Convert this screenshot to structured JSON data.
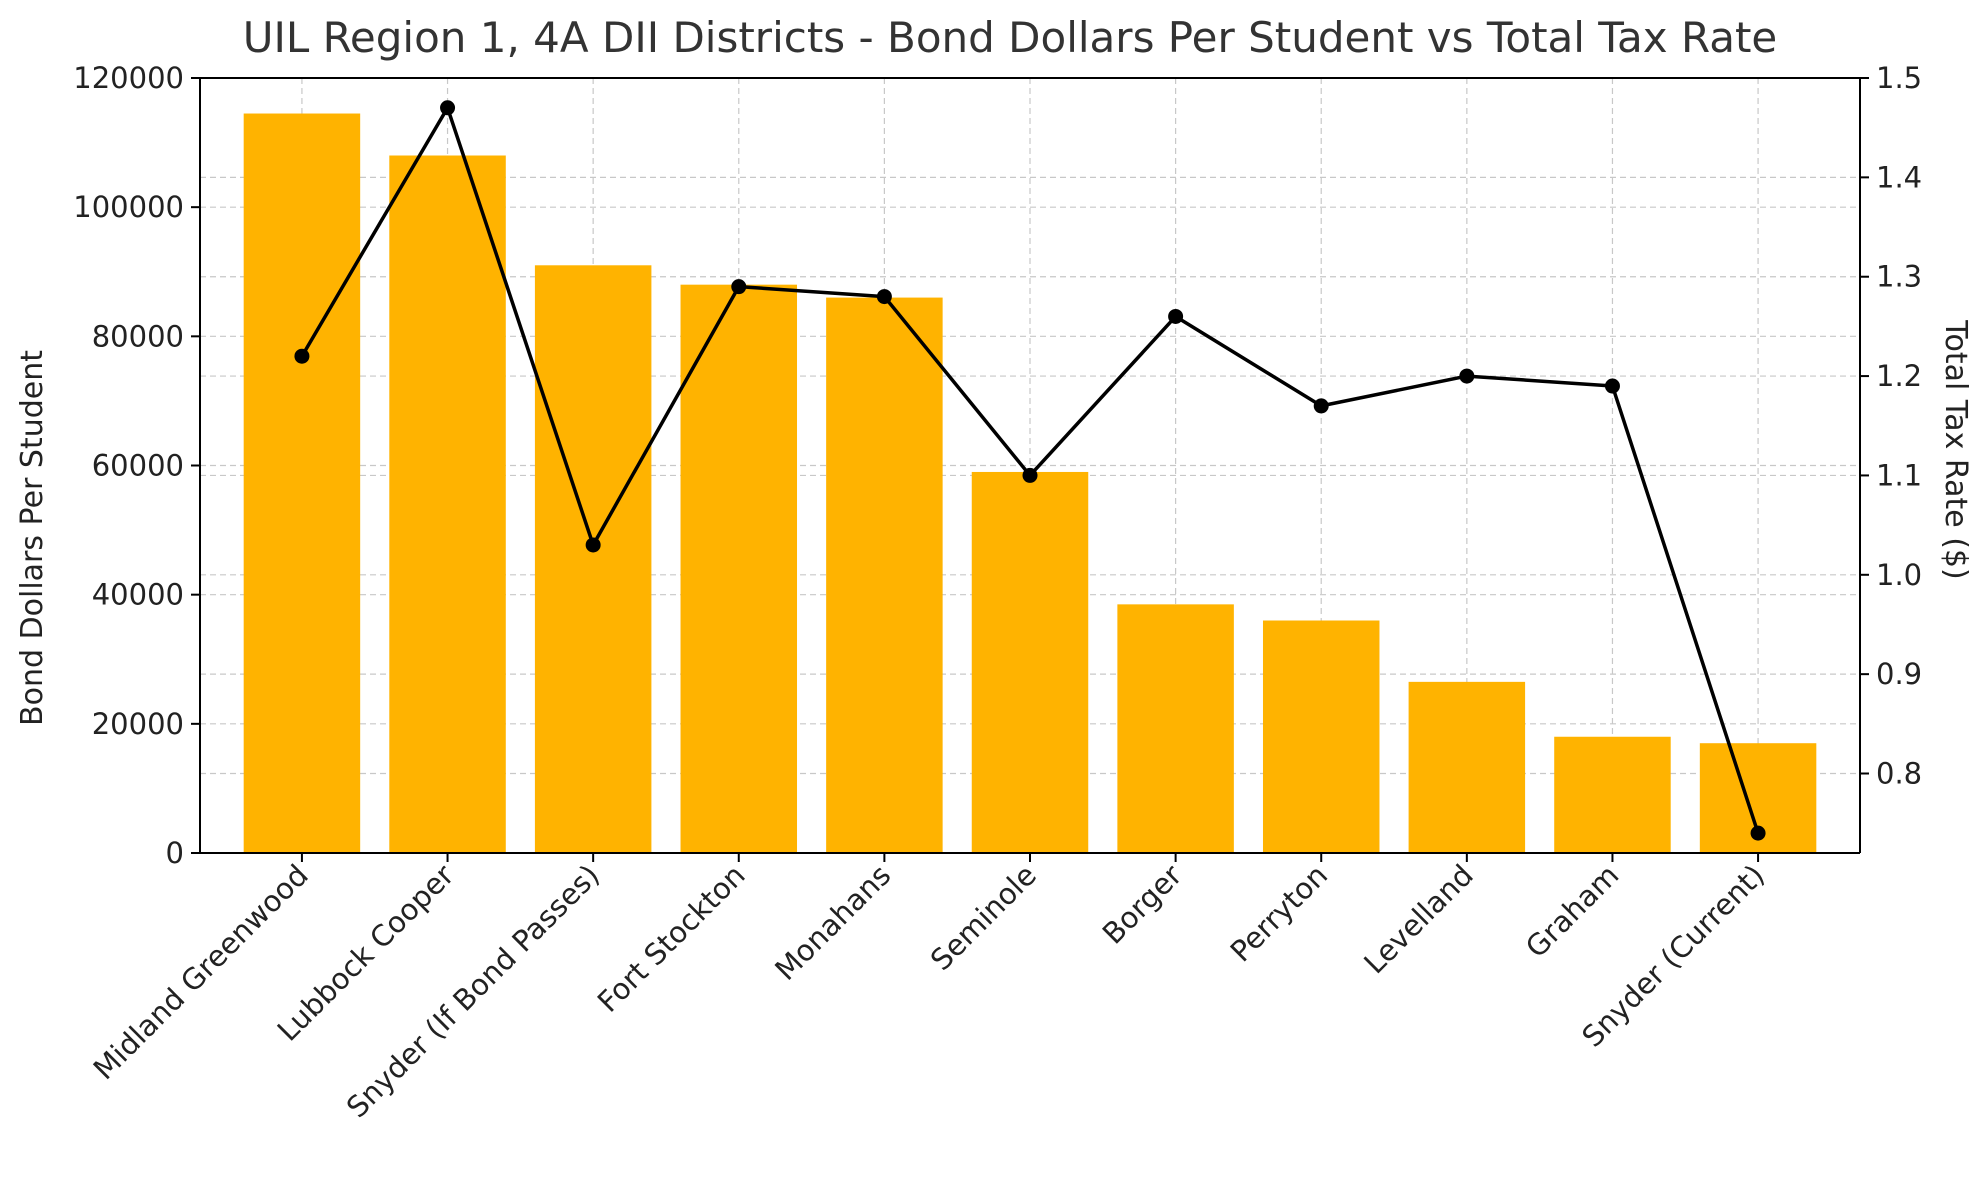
{
  "chart_data": {
    "type": "bar",
    "title": "UIL Region 1, 4A DII Districts - Bond Dollars Per Student vs Total Tax Rate",
    "categories": [
      "Midland Greenwood",
      "Lubbock Cooper",
      "Snyder (If Bond Passes)",
      "Fort Stockton",
      "Monahans",
      "Seminole",
      "Borger",
      "Perryton",
      "Levelland",
      "Graham",
      "Snyder (Current)"
    ],
    "ylabel": "Bond Dollars Per Student",
    "y2label": "Total Tax Rate ($)",
    "ylim": [
      0,
      120000
    ],
    "y2lim": [
      0.72,
      1.5
    ],
    "yticks": [
      "0",
      "20000",
      "40000",
      "60000",
      "80000",
      "100000",
      "120000"
    ],
    "y2ticks": [
      "0.8",
      "0.9",
      "1.0",
      "1.1",
      "1.2",
      "1.3",
      "1.4",
      "1.5"
    ],
    "grid": true,
    "series": [
      {
        "type": "bar",
        "axis": "left",
        "color": "#FFB300",
        "values": [
          114500,
          108000,
          91000,
          88000,
          86000,
          59000,
          38500,
          36000,
          26500,
          18000,
          17000
        ]
      },
      {
        "type": "line",
        "axis": "right",
        "color": "#000000",
        "marker": "circle",
        "values": [
          1.22,
          1.47,
          1.03,
          1.29,
          1.28,
          1.1,
          1.26,
          1.17,
          1.2,
          1.19,
          0.74
        ]
      }
    ]
  }
}
